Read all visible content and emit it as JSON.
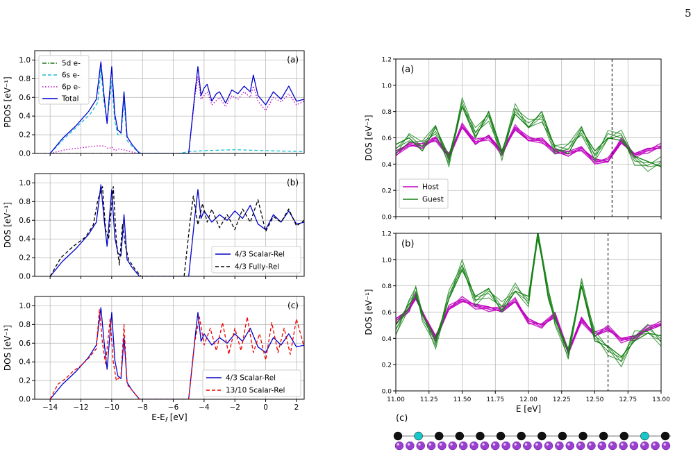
{
  "page_number": "5",
  "colors": {
    "axis": "#000000",
    "grid": "#b0b0b0",
    "total": "#0000cc",
    "d5": "#1a7a1a",
    "s6": "#17becf",
    "p6": "#bf00bf",
    "fully_rel": "#000000",
    "rel1310": "#ee0000",
    "host": "#bf00bf",
    "guest": "#138013",
    "atom_black": "#111111",
    "atom_cyan": "#18c7c7",
    "atom_purple": "#9b3fd0"
  },
  "chart_data": [
    {
      "id": "a-left",
      "type": "line",
      "panel_label": "(a)",
      "ylabel": "PDOS [eV⁻¹]",
      "xlim": [
        -15,
        2.5
      ],
      "ylim": [
        0,
        1.1
      ],
      "yticks": [
        "0.0",
        "0.2",
        "0.4",
        "0.6",
        "0.8",
        "1.0"
      ],
      "legend_position": "top-left",
      "series": [
        {
          "name": "5d e-",
          "style": "dashdot",
          "color": "d5",
          "x": [
            -15,
            2.5
          ],
          "y": [
            0,
            0
          ]
        },
        {
          "name": "6s e-",
          "style": "dashed",
          "color": "s6",
          "x": [
            -14,
            -13.2,
            -12.3,
            -11.4,
            -10.9,
            -10.7,
            -10.5,
            -10.3,
            -10.0,
            -9.8,
            -9.6,
            -9.4,
            -9.2,
            -9.0,
            -8.6,
            -8.1,
            -5.6,
            -5.0,
            -4.0,
            -2.0,
            0.0,
            2.5
          ],
          "y": [
            0,
            0.14,
            0.28,
            0.42,
            0.55,
            0.9,
            0.55,
            0.34,
            0.78,
            0.34,
            0.2,
            0.2,
            0.56,
            0.14,
            0.06,
            0,
            0,
            0.02,
            0.03,
            0.04,
            0.03,
            0.02
          ]
        },
        {
          "name": "6p e-",
          "style": "dotted",
          "color": "p6",
          "x": [
            -14,
            -13,
            -12,
            -11,
            -10.5,
            -10.2,
            -10,
            -9.8,
            -9.5,
            -9,
            -8.3,
            -5.0,
            -4.6,
            -4.4,
            -4.2,
            -3.8,
            -3.5,
            -3.0,
            -2.6,
            -2.2,
            -1.8,
            -1.4,
            -1.0,
            -0.8,
            -0.5,
            0.0,
            0.5,
            1.0,
            1.5,
            2.0,
            2.5
          ],
          "y": [
            0,
            0.04,
            0.06,
            0.08,
            0.08,
            0.05,
            0.07,
            0.03,
            0.05,
            0.03,
            0,
            0,
            0.6,
            0.82,
            0.58,
            0.66,
            0.52,
            0.6,
            0.5,
            0.62,
            0.58,
            0.66,
            0.6,
            0.72,
            0.56,
            0.46,
            0.6,
            0.55,
            0.64,
            0.52,
            0.56
          ]
        },
        {
          "name": "Total",
          "style": "solid",
          "color": "total",
          "x": [
            -14,
            -13.2,
            -12.3,
            -11.5,
            -11.0,
            -10.7,
            -10.5,
            -10.3,
            -10.0,
            -9.8,
            -9.6,
            -9.4,
            -9.2,
            -9.0,
            -8.7,
            -8.2,
            -5.0,
            -4.6,
            -4.4,
            -4.2,
            -4.0,
            -3.8,
            -3.5,
            -3.2,
            -3.0,
            -2.6,
            -2.2,
            -1.8,
            -1.4,
            -1.0,
            -0.8,
            -0.5,
            0.0,
            0.5,
            1.0,
            1.5,
            2.0,
            2.5
          ],
          "y": [
            0,
            0.16,
            0.3,
            0.45,
            0.58,
            0.98,
            0.62,
            0.32,
            0.93,
            0.42,
            0.25,
            0.22,
            0.66,
            0.18,
            0.1,
            0,
            0,
            0.64,
            0.93,
            0.62,
            0.7,
            0.74,
            0.56,
            0.64,
            0.66,
            0.54,
            0.68,
            0.64,
            0.72,
            0.66,
            0.84,
            0.62,
            0.52,
            0.66,
            0.58,
            0.72,
            0.56,
            0.58
          ]
        }
      ]
    },
    {
      "id": "b-left",
      "type": "line",
      "panel_label": "(b)",
      "ylabel": "DOS [eV⁻¹]",
      "xlim": [
        -15,
        2.5
      ],
      "ylim": [
        0,
        1.1
      ],
      "yticks": [
        "0.0",
        "0.2",
        "0.4",
        "0.6",
        "0.8",
        "1.0"
      ],
      "legend_position": "bottom-right",
      "series": [
        {
          "name": "4/3 Scalar-Rel",
          "style": "solid",
          "color": "total",
          "x": [
            -14,
            -13.2,
            -12.3,
            -11.5,
            -11.0,
            -10.7,
            -10.5,
            -10.3,
            -10.0,
            -9.8,
            -9.6,
            -9.4,
            -9.2,
            -9.0,
            -8.7,
            -8.2,
            -5.0,
            -4.6,
            -4.4,
            -4.2,
            -4.0,
            -3.5,
            -3.0,
            -2.5,
            -2.0,
            -1.5,
            -1.0,
            -0.5,
            0.0,
            0.5,
            1.0,
            1.5,
            2.0,
            2.5
          ],
          "y": [
            0,
            0.16,
            0.3,
            0.45,
            0.58,
            0.98,
            0.62,
            0.32,
            0.93,
            0.42,
            0.25,
            0.22,
            0.66,
            0.18,
            0.1,
            0,
            0,
            0.64,
            0.93,
            0.62,
            0.7,
            0.58,
            0.66,
            0.6,
            0.7,
            0.62,
            0.76,
            0.56,
            0.5,
            0.66,
            0.58,
            0.7,
            0.56,
            0.58
          ]
        },
        {
          "name": "4/3 Fully-Rel",
          "style": "dashed",
          "color": "fully_rel",
          "x": [
            -14,
            -13.3,
            -12.5,
            -11.7,
            -11.2,
            -10.9,
            -10.6,
            -10.4,
            -10.2,
            -9.9,
            -9.7,
            -9.5,
            -9.3,
            -9.1,
            -8.9,
            -8.5,
            -8.1,
            -5.3,
            -4.9,
            -4.7,
            -4.4,
            -4.1,
            -3.8,
            -3.5,
            -3.0,
            -2.5,
            -2.0,
            -1.5,
            -1.0,
            -0.5,
            0.0,
            0.5,
            1.0,
            1.5,
            2.0,
            2.5
          ],
          "y": [
            0,
            0.2,
            0.32,
            0.42,
            0.55,
            0.82,
            0.96,
            0.5,
            0.4,
            0.96,
            0.38,
            0.12,
            0.56,
            0.32,
            0.18,
            0.08,
            0,
            0,
            0.6,
            0.86,
            0.55,
            0.78,
            0.58,
            0.72,
            0.52,
            0.66,
            0.5,
            0.72,
            0.58,
            0.82,
            0.48,
            0.64,
            0.58,
            0.72,
            0.54,
            0.6
          ]
        }
      ]
    },
    {
      "id": "c-left",
      "type": "line",
      "panel_label": "(c)",
      "ylabel": "DOS [eV⁻¹]",
      "xlabel": "E-E_f [eV]",
      "xlim": [
        -15,
        2.5
      ],
      "ylim": [
        0,
        1.1
      ],
      "xticks": [
        "−14",
        "−12",
        "−10",
        "−8",
        "−6",
        "−4",
        "−2",
        "0",
        "2"
      ],
      "yticks": [
        "0.0",
        "0.2",
        "0.4",
        "0.6",
        "0.8",
        "1.0"
      ],
      "legend_position": "bottom-right",
      "series": [
        {
          "name": "4/3 Scalar-Rel",
          "style": "solid",
          "color": "total",
          "x": [
            -14,
            -13.2,
            -12.3,
            -11.5,
            -11.0,
            -10.7,
            -10.5,
            -10.3,
            -10.0,
            -9.8,
            -9.6,
            -9.4,
            -9.2,
            -9.0,
            -8.7,
            -8.2,
            -5.0,
            -4.6,
            -4.4,
            -4.2,
            -4.0,
            -3.5,
            -3.0,
            -2.5,
            -2.0,
            -1.5,
            -1.0,
            -0.5,
            0.0,
            0.5,
            1.0,
            1.5,
            2.0,
            2.5
          ],
          "y": [
            0,
            0.16,
            0.3,
            0.45,
            0.58,
            0.98,
            0.62,
            0.32,
            0.93,
            0.42,
            0.25,
            0.22,
            0.66,
            0.18,
            0.1,
            0,
            0,
            0.64,
            0.93,
            0.62,
            0.7,
            0.58,
            0.66,
            0.6,
            0.7,
            0.62,
            0.76,
            0.56,
            0.5,
            0.66,
            0.58,
            0.7,
            0.56,
            0.58
          ]
        },
        {
          "name": "13/10 Scalar-Rel",
          "style": "dashed",
          "color": "rel1310",
          "x": [
            -14,
            -13.5,
            -13.0,
            -12.5,
            -12.0,
            -11.5,
            -11.0,
            -10.8,
            -10.6,
            -10.4,
            -10.1,
            -9.9,
            -9.7,
            -9.4,
            -9.2,
            -9.0,
            -8.6,
            -8.2,
            -5.0,
            -4.6,
            -4.3,
            -4.0,
            -3.6,
            -3.2,
            -2.8,
            -2.4,
            -2.0,
            -1.6,
            -1.2,
            -0.8,
            -0.4,
            0.0,
            0.4,
            0.8,
            1.2,
            1.6,
            2.0,
            2.5
          ],
          "y": [
            0,
            0.16,
            0.22,
            0.3,
            0.36,
            0.44,
            0.54,
            0.96,
            0.6,
            0.38,
            0.86,
            0.4,
            0.2,
            0.25,
            0.8,
            0.16,
            0.08,
            0,
            0,
            0.62,
            0.88,
            0.58,
            0.76,
            0.52,
            0.82,
            0.48,
            0.76,
            0.52,
            0.88,
            0.5,
            0.7,
            0.42,
            0.82,
            0.5,
            0.76,
            0.48,
            0.86,
            0.56
          ]
        }
      ]
    },
    {
      "id": "a-right",
      "type": "line",
      "panel_label": "(a)",
      "ylabel": "DOS [eV⁻¹]",
      "xlim": [
        11.0,
        13.0
      ],
      "ylim": [
        0,
        1.2
      ],
      "yticks": [
        "0.0",
        "0.2",
        "0.4",
        "0.6",
        "0.8",
        "1.0",
        "1.2"
      ],
      "vline_x": 12.63,
      "legend_position": "bottom-left",
      "series": [
        {
          "name": "Host",
          "color": "host",
          "x": [
            11.0,
            11.1,
            11.2,
            11.3,
            11.4,
            11.5,
            11.6,
            11.7,
            11.8,
            11.9,
            12.0,
            12.1,
            12.2,
            12.3,
            12.4,
            12.5,
            12.6,
            12.7,
            12.8,
            12.9,
            13.0
          ],
          "y": [
            0.5,
            0.55,
            0.52,
            0.6,
            0.48,
            0.68,
            0.55,
            0.62,
            0.5,
            0.66,
            0.58,
            0.6,
            0.5,
            0.46,
            0.52,
            0.44,
            0.42,
            0.56,
            0.48,
            0.52,
            0.52
          ]
        },
        {
          "name": "Guest",
          "color": "guest",
          "x": [
            11.0,
            11.1,
            11.2,
            11.3,
            11.4,
            11.5,
            11.6,
            11.7,
            11.8,
            11.9,
            12.0,
            12.1,
            12.2,
            12.3,
            12.4,
            12.5,
            12.6,
            12.7,
            12.8,
            12.9,
            13.0
          ],
          "y": [
            0.55,
            0.6,
            0.5,
            0.68,
            0.46,
            0.84,
            0.6,
            0.8,
            0.5,
            0.78,
            0.68,
            0.8,
            0.52,
            0.48,
            0.66,
            0.5,
            0.6,
            0.58,
            0.46,
            0.42,
            0.38
          ]
        }
      ]
    },
    {
      "id": "b-right",
      "type": "line",
      "panel_label": "(b)",
      "ylabel": "DOS [eV⁻¹]",
      "xlabel": "E [eV]",
      "xlim": [
        11.0,
        13.0
      ],
      "ylim": [
        0,
        1.2
      ],
      "xticks": [
        "11.00",
        "11.25",
        "11.50",
        "11.75",
        "12.00",
        "12.25",
        "12.50",
        "12.75",
        "13.00"
      ],
      "yticks": [
        "0.0",
        "0.2",
        "0.4",
        "0.6",
        "0.8",
        "1.0",
        "1.2"
      ],
      "vline_x": 12.6,
      "series": [
        {
          "name": "Host",
          "color": "host",
          "x": [
            11.0,
            11.1,
            11.15,
            11.2,
            11.3,
            11.4,
            11.5,
            11.6,
            11.7,
            11.8,
            11.9,
            12.0,
            12.1,
            12.2,
            12.3,
            12.4,
            12.5,
            12.6,
            12.7,
            12.8,
            12.9,
            13.0
          ],
          "y": [
            0.55,
            0.62,
            0.7,
            0.6,
            0.42,
            0.62,
            0.68,
            0.66,
            0.64,
            0.6,
            0.68,
            0.55,
            0.5,
            0.56,
            0.3,
            0.56,
            0.42,
            0.46,
            0.4,
            0.42,
            0.46,
            0.5
          ]
        },
        {
          "name": "Guest",
          "color": "guest",
          "x": [
            11.0,
            11.1,
            11.15,
            11.2,
            11.3,
            11.4,
            11.5,
            11.6,
            11.7,
            11.8,
            11.9,
            12.0,
            12.07,
            12.15,
            12.2,
            12.3,
            12.4,
            12.5,
            12.6,
            12.7,
            12.8,
            12.9,
            13.0
          ],
          "y": [
            0.5,
            0.66,
            0.72,
            0.58,
            0.4,
            0.7,
            0.92,
            0.72,
            0.78,
            0.6,
            0.76,
            0.72,
            1.2,
            0.7,
            0.54,
            0.32,
            0.8,
            0.38,
            0.34,
            0.26,
            0.38,
            0.44,
            0.42
          ]
        }
      ]
    }
  ],
  "panel_c_label": "(c)",
  "atom_chain": {
    "top_row": [
      "black",
      "cyan",
      "black",
      "black",
      "black",
      "black",
      "black",
      "black",
      "black",
      "black",
      "black",
      "black",
      "cyan",
      "black"
    ],
    "bottom_row_count": 26,
    "bottom_color": "purple"
  }
}
